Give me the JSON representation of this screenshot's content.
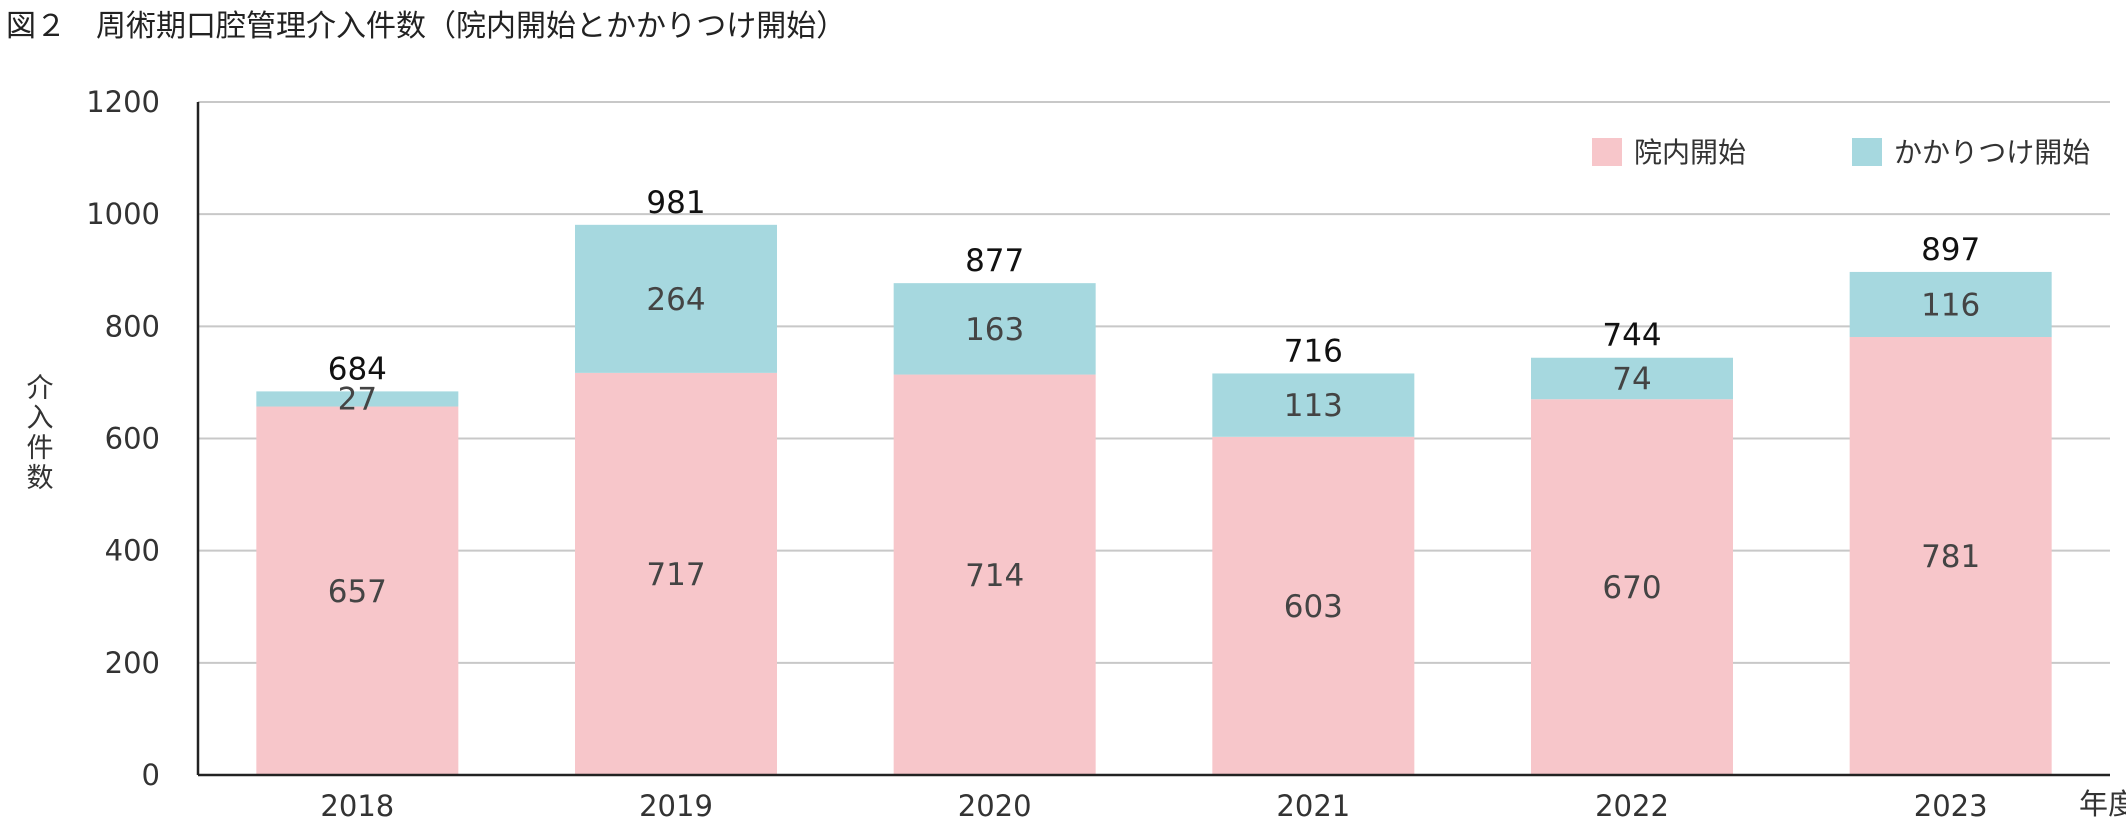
{
  "chart_data": {
    "type": "bar",
    "stacked": true,
    "title": "図２　周術期口腔管理介入件数（院内開始とかかりつけ開始）",
    "xlabel": "年度",
    "ylabel": "介入件数",
    "categories": [
      "2018",
      "2019",
      "2020",
      "2021",
      "2022",
      "2023"
    ],
    "series": [
      {
        "name": "院内開始",
        "color": "#f7c6ca",
        "values": [
          657,
          717,
          714,
          603,
          670,
          781
        ]
      },
      {
        "name": "かかりつけ開始",
        "color": "#a6d8df",
        "values": [
          27,
          264,
          163,
          113,
          74,
          116
        ]
      }
    ],
    "totals": [
      684,
      981,
      877,
      716,
      744,
      897
    ],
    "ylim": [
      0,
      1200
    ],
    "yticks": [
      0,
      200,
      400,
      600,
      800,
      1000,
      1200
    ],
    "grid": true,
    "legend": "top-right",
    "colors": {
      "axis": "#222222",
      "grid": "#c8c8c8"
    }
  }
}
